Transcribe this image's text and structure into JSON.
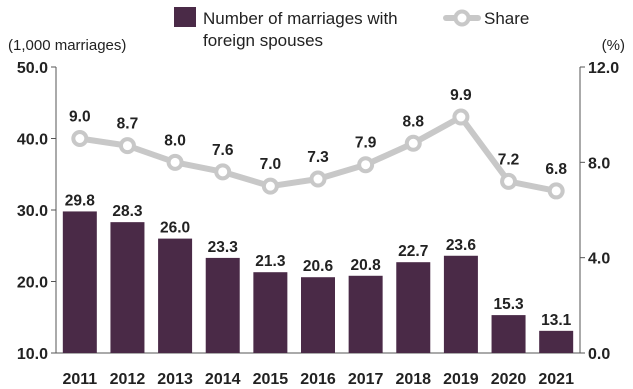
{
  "chart_data": {
    "type": "bar",
    "categories": [
      "2011",
      "2012",
      "2013",
      "2014",
      "2015",
      "2016",
      "2017",
      "2018",
      "2019",
      "2020",
      "2021"
    ],
    "series": [
      {
        "name": "Number of marriages with foreign spouses",
        "type": "bar",
        "axis": "left",
        "color": "#4a2a47",
        "values": [
          29.8,
          28.3,
          26.0,
          23.3,
          21.3,
          20.6,
          20.8,
          22.7,
          23.6,
          15.3,
          13.1
        ]
      },
      {
        "name": "Share",
        "type": "line",
        "axis": "right",
        "color": "#c8c8c8",
        "values": [
          9.0,
          8.7,
          8.0,
          7.6,
          7.0,
          7.3,
          7.9,
          8.8,
          9.9,
          7.2,
          6.8
        ]
      }
    ],
    "y_left": {
      "unit_label": "(1,000 marriages)",
      "ylim": [
        10.0,
        50.0
      ],
      "ticks": [
        "10.0",
        "20.0",
        "30.0",
        "40.0",
        "50.0"
      ]
    },
    "y_right": {
      "unit_label": "(%)",
      "ylim": [
        0.0,
        12.0
      ],
      "ticks": [
        "0.0",
        "4.0",
        "8.0",
        "12.0"
      ]
    },
    "legend": {
      "position": "top",
      "bar_label_line1": "Number of marriages with",
      "bar_label_line2": "foreign spouses",
      "line_label": "Share"
    },
    "grid": false,
    "bar_labels": [
      "29.8",
      "28.3",
      "26.0",
      "23.3",
      "21.3",
      "20.6",
      "20.8",
      "22.7",
      "23.6",
      "15.3",
      "13.1"
    ],
    "line_labels": [
      "9.0",
      "8.7",
      "8.0",
      "7.6",
      "7.0",
      "7.3",
      "7.9",
      "8.8",
      "9.9",
      "7.2",
      "6.8"
    ]
  }
}
